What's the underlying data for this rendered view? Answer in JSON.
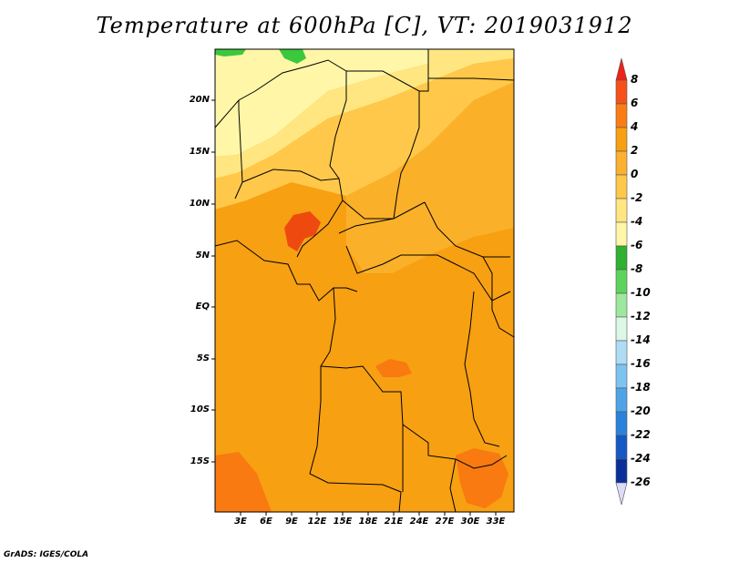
{
  "title": "Temperature at 600hPa [C], VT: 2019031912",
  "credit": "GrADS: IGES/COLA",
  "colors": {
    "frame": "#000000",
    "warm1": "#fff6a8",
    "warm2": "#ffe680",
    "warm3": "#ffc84a",
    "warm4": "#fbb02a",
    "warm5": "#f7a012",
    "warm6": "#f87a10",
    "warm7": "#ee4a10",
    "green": "#3cc83c"
  },
  "map": {
    "lat_labels": [
      "20N",
      "15N",
      "10N",
      "5N",
      "EQ",
      "5S",
      "10S",
      "15S"
    ],
    "lon_labels": [
      "3E",
      "6E",
      "9E",
      "12E",
      "15E",
      "18E",
      "21E",
      "24E",
      "27E",
      "30E",
      "33E"
    ]
  },
  "colorbar": {
    "labels": [
      "8",
      "6",
      "4",
      "2",
      "0",
      "-2",
      "-4",
      "-6",
      "-8",
      "-10",
      "-12",
      "-14",
      "-16",
      "-18",
      "-20",
      "-22",
      "-24",
      "-26"
    ],
    "colors": [
      "#f0221c",
      "#f8501a",
      "#fa7d14",
      "#f8a012",
      "#fbb030",
      "#ffc84a",
      "#ffe680",
      "#fff6a8",
      "#31b031",
      "#5cd45c",
      "#9ee89e",
      "#dcf7e6",
      "#aedcf5",
      "#7cc3f0",
      "#4fa4e8",
      "#2b82dc",
      "#1458c4",
      "#0a2e9a",
      "#0c0c64"
    ]
  }
}
